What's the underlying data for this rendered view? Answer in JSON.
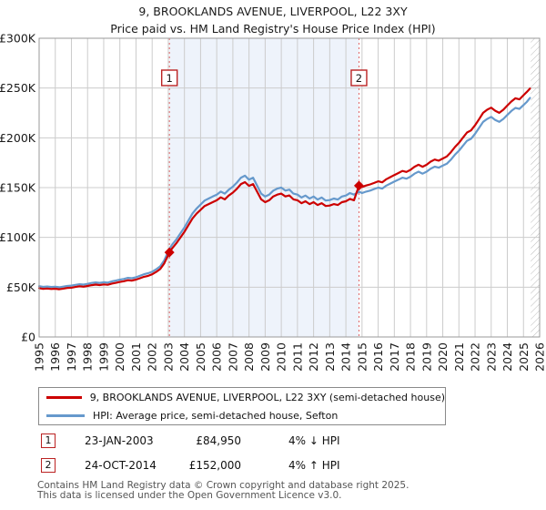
{
  "title": "9, BROOKLANDS AVENUE, LIVERPOOL, L22 3XY",
  "subtitle": "Price paid vs. HM Land Registry's House Price Index (HPI)",
  "legend": [
    {
      "label": "9, BROOKLANDS AVENUE, LIVERPOOL, L22 3XY (semi-detached house)",
      "color": "#cc0000"
    },
    {
      "label": "HPI: Average price, semi-detached house, Sefton",
      "color": "#6699cc"
    }
  ],
  "transactions": [
    {
      "num": "1",
      "date": "23-JAN-2003",
      "price": "£84,950",
      "delta": "4% ↓ HPI"
    },
    {
      "num": "2",
      "date": "24-OCT-2014",
      "price": "£152,000",
      "delta": "4% ↑ HPI"
    }
  ],
  "footer": {
    "line1": "Contains HM Land Registry data © Crown copyright and database right 2025.",
    "line2": "This data is licensed under the Open Government Licence v3.0."
  },
  "chart_data": {
    "type": "line",
    "title": "9, BROOKLANDS AVENUE, LIVERPOOL, L22 3XY",
    "subtitle": "Price paid vs. HM Land Registry's House Price Index (HPI)",
    "x_axis": {
      "min": 1995,
      "max": 2026,
      "tick_years": [
        1995,
        1996,
        1997,
        1998,
        1999,
        2000,
        2001,
        2002,
        2003,
        2004,
        2005,
        2006,
        2007,
        2008,
        2009,
        2010,
        2011,
        2012,
        2013,
        2014,
        2015,
        2016,
        2017,
        2018,
        2019,
        2020,
        2021,
        2022,
        2023,
        2024,
        2025,
        2026
      ]
    },
    "y_axis": {
      "min": 0,
      "max": 300000,
      "tick_values": [
        0,
        50000,
        100000,
        150000,
        200000,
        250000,
        300000
      ],
      "tick_labels": [
        "£0",
        "£50K",
        "£100K",
        "£150K",
        "£200K",
        "£250K",
        "£300K"
      ]
    },
    "grid": true,
    "legend_position": "bottom",
    "shaded_region": {
      "from": 2003.07,
      "to": 2014.81,
      "color": "#eef3fb"
    },
    "hatched_region": {
      "from": 2025.45,
      "to": 2026
    },
    "sale_markers": [
      {
        "label": "1",
        "x": 2003.07,
        "value": 84950,
        "date": "23-JAN-2003",
        "vs_hpi": "4% below HPI"
      },
      {
        "label": "2",
        "x": 2014.81,
        "value": 152000,
        "date": "24-OCT-2014",
        "vs_hpi": "4% above HPI"
      }
    ],
    "series": [
      {
        "name": "9, BROOKLANDS AVENUE, LIVERPOOL, L22 3XY (semi-detached house)",
        "color": "#cc0000",
        "points": [
          [
            1995.0,
            49000
          ],
          [
            1995.25,
            48300
          ],
          [
            1995.5,
            48700
          ],
          [
            1995.75,
            48200
          ],
          [
            1996.0,
            48500
          ],
          [
            1996.25,
            47900
          ],
          [
            1996.5,
            48600
          ],
          [
            1996.75,
            49200
          ],
          [
            1997.0,
            49500
          ],
          [
            1997.25,
            50200
          ],
          [
            1997.5,
            50900
          ],
          [
            1997.75,
            50500
          ],
          [
            1998.0,
            51200
          ],
          [
            1998.25,
            52000
          ],
          [
            1998.5,
            52600
          ],
          [
            1998.75,
            52100
          ],
          [
            1999.0,
            52800
          ],
          [
            1999.25,
            52400
          ],
          [
            1999.5,
            53600
          ],
          [
            1999.75,
            54300
          ],
          [
            2000.0,
            55200
          ],
          [
            2000.25,
            56000
          ],
          [
            2000.5,
            57000
          ],
          [
            2000.75,
            56600
          ],
          [
            2001.0,
            57600
          ],
          [
            2001.25,
            59000
          ],
          [
            2001.5,
            60500
          ],
          [
            2001.75,
            61400
          ],
          [
            2002.0,
            62900
          ],
          [
            2002.25,
            65300
          ],
          [
            2002.5,
            68200
          ],
          [
            2002.75,
            73900
          ],
          [
            2003.07,
            84950
          ],
          [
            2003.25,
            89300
          ],
          [
            2003.5,
            94100
          ],
          [
            2003.75,
            99800
          ],
          [
            2004.0,
            105600
          ],
          [
            2004.25,
            112300
          ],
          [
            2004.5,
            119000
          ],
          [
            2004.75,
            123800
          ],
          [
            2005.0,
            127700
          ],
          [
            2005.25,
            131500
          ],
          [
            2005.5,
            133400
          ],
          [
            2005.75,
            135400
          ],
          [
            2006.0,
            137300
          ],
          [
            2006.25,
            140200
          ],
          [
            2006.5,
            138200
          ],
          [
            2006.75,
            142100
          ],
          [
            2007.0,
            145000
          ],
          [
            2007.25,
            148800
          ],
          [
            2007.5,
            153600
          ],
          [
            2007.75,
            155500
          ],
          [
            2008.0,
            151700
          ],
          [
            2008.25,
            153600
          ],
          [
            2008.5,
            146000
          ],
          [
            2008.75,
            138200
          ],
          [
            2009.0,
            135400
          ],
          [
            2009.25,
            137300
          ],
          [
            2009.5,
            141100
          ],
          [
            2009.75,
            143000
          ],
          [
            2010.0,
            144000
          ],
          [
            2010.25,
            141100
          ],
          [
            2010.5,
            142100
          ],
          [
            2010.75,
            138200
          ],
          [
            2011.0,
            137300
          ],
          [
            2011.25,
            134400
          ],
          [
            2011.5,
            136300
          ],
          [
            2011.75,
            133400
          ],
          [
            2012.0,
            135400
          ],
          [
            2012.25,
            132500
          ],
          [
            2012.5,
            134400
          ],
          [
            2012.75,
            131500
          ],
          [
            2013.0,
            132000
          ],
          [
            2013.25,
            133400
          ],
          [
            2013.5,
            132500
          ],
          [
            2013.75,
            135400
          ],
          [
            2014.0,
            136300
          ],
          [
            2014.25,
            138700
          ],
          [
            2014.5,
            137300
          ],
          [
            2014.81,
            152000
          ],
          [
            2015.0,
            150600
          ],
          [
            2015.25,
            152100
          ],
          [
            2015.5,
            153200
          ],
          [
            2015.75,
            154700
          ],
          [
            2016.0,
            156300
          ],
          [
            2016.25,
            155300
          ],
          [
            2016.5,
            158400
          ],
          [
            2016.75,
            160500
          ],
          [
            2017.0,
            162600
          ],
          [
            2017.25,
            164600
          ],
          [
            2017.5,
            166700
          ],
          [
            2017.75,
            165700
          ],
          [
            2018.0,
            167800
          ],
          [
            2018.25,
            170900
          ],
          [
            2018.5,
            173000
          ],
          [
            2018.75,
            170900
          ],
          [
            2019.0,
            173000
          ],
          [
            2019.25,
            176100
          ],
          [
            2019.5,
            178200
          ],
          [
            2019.75,
            177100
          ],
          [
            2020.0,
            179200
          ],
          [
            2020.25,
            181300
          ],
          [
            2020.5,
            185500
          ],
          [
            2020.75,
            190700
          ],
          [
            2021.0,
            194900
          ],
          [
            2021.25,
            200100
          ],
          [
            2021.5,
            205300
          ],
          [
            2021.75,
            207400
          ],
          [
            2022.0,
            212600
          ],
          [
            2022.25,
            218800
          ],
          [
            2022.5,
            225100
          ],
          [
            2022.75,
            228200
          ],
          [
            2023.0,
            230300
          ],
          [
            2023.25,
            227200
          ],
          [
            2023.5,
            225100
          ],
          [
            2023.75,
            228200
          ],
          [
            2024.0,
            232400
          ],
          [
            2024.25,
            236500
          ],
          [
            2024.5,
            239700
          ],
          [
            2024.75,
            238600
          ],
          [
            2025.0,
            242800
          ],
          [
            2025.2,
            245900
          ],
          [
            2025.4,
            249500
          ]
        ]
      },
      {
        "name": "HPI: Average price, semi-detached house, Sefton",
        "color": "#6699cc",
        "points": [
          [
            1995.0,
            51000
          ],
          [
            1995.25,
            50300
          ],
          [
            1995.5,
            50700
          ],
          [
            1995.75,
            50200
          ],
          [
            1996.0,
            50500
          ],
          [
            1996.25,
            49900
          ],
          [
            1996.5,
            50600
          ],
          [
            1996.75,
            51200
          ],
          [
            1997.0,
            51600
          ],
          [
            1997.25,
            52300
          ],
          [
            1997.5,
            53000
          ],
          [
            1997.75,
            52600
          ],
          [
            1998.0,
            53300
          ],
          [
            1998.25,
            54200
          ],
          [
            1998.5,
            54800
          ],
          [
            1998.75,
            54300
          ],
          [
            1999.0,
            55000
          ],
          [
            1999.25,
            54600
          ],
          [
            1999.5,
            55800
          ],
          [
            1999.75,
            56600
          ],
          [
            2000.0,
            57500
          ],
          [
            2000.25,
            58300
          ],
          [
            2000.5,
            59400
          ],
          [
            2000.75,
            59000
          ],
          [
            2001.0,
            60000
          ],
          [
            2001.25,
            61500
          ],
          [
            2001.5,
            63000
          ],
          [
            2001.75,
            64000
          ],
          [
            2002.0,
            65500
          ],
          [
            2002.25,
            68000
          ],
          [
            2002.5,
            71000
          ],
          [
            2002.75,
            77000
          ],
          [
            2003.07,
            88500
          ],
          [
            2003.25,
            93000
          ],
          [
            2003.5,
            98000
          ],
          [
            2003.75,
            104000
          ],
          [
            2004.0,
            110000
          ],
          [
            2004.25,
            117000
          ],
          [
            2004.5,
            124000
          ],
          [
            2004.75,
            129000
          ],
          [
            2005.0,
            133000
          ],
          [
            2005.25,
            137000
          ],
          [
            2005.5,
            139000
          ],
          [
            2005.75,
            141000
          ],
          [
            2006.0,
            143000
          ],
          [
            2006.25,
            146000
          ],
          [
            2006.5,
            144000
          ],
          [
            2006.75,
            148000
          ],
          [
            2007.0,
            151000
          ],
          [
            2007.25,
            155000
          ],
          [
            2007.5,
            160000
          ],
          [
            2007.75,
            162000
          ],
          [
            2008.0,
            158000
          ],
          [
            2008.25,
            160000
          ],
          [
            2008.5,
            152000
          ],
          [
            2008.75,
            144000
          ],
          [
            2009.0,
            141000
          ],
          [
            2009.25,
            143000
          ],
          [
            2009.5,
            147000
          ],
          [
            2009.75,
            149000
          ],
          [
            2010.0,
            150000
          ],
          [
            2010.25,
            147000
          ],
          [
            2010.5,
            148000
          ],
          [
            2010.75,
            144000
          ],
          [
            2011.0,
            143000
          ],
          [
            2011.25,
            140000
          ],
          [
            2011.5,
            142000
          ],
          [
            2011.75,
            139000
          ],
          [
            2012.0,
            141000
          ],
          [
            2012.25,
            138000
          ],
          [
            2012.5,
            140000
          ],
          [
            2012.75,
            137000
          ],
          [
            2013.0,
            137500
          ],
          [
            2013.25,
            139000
          ],
          [
            2013.5,
            138000
          ],
          [
            2013.75,
            141000
          ],
          [
            2014.0,
            142000
          ],
          [
            2014.25,
            144500
          ],
          [
            2014.5,
            143000
          ],
          [
            2014.81,
            146000
          ],
          [
            2015.0,
            144500
          ],
          [
            2015.25,
            146000
          ],
          [
            2015.5,
            147000
          ],
          [
            2015.75,
            148500
          ],
          [
            2016.0,
            150000
          ],
          [
            2016.25,
            149000
          ],
          [
            2016.5,
            152000
          ],
          [
            2016.75,
            154000
          ],
          [
            2017.0,
            156000
          ],
          [
            2017.25,
            158000
          ],
          [
            2017.5,
            160000
          ],
          [
            2017.75,
            159000
          ],
          [
            2018.0,
            161000
          ],
          [
            2018.25,
            164000
          ],
          [
            2018.5,
            166000
          ],
          [
            2018.75,
            164000
          ],
          [
            2019.0,
            166000
          ],
          [
            2019.25,
            169000
          ],
          [
            2019.5,
            171000
          ],
          [
            2019.75,
            170000
          ],
          [
            2020.0,
            172000
          ],
          [
            2020.25,
            174000
          ],
          [
            2020.5,
            178000
          ],
          [
            2020.75,
            183000
          ],
          [
            2021.0,
            187000
          ],
          [
            2021.25,
            192000
          ],
          [
            2021.5,
            197000
          ],
          [
            2021.75,
            199000
          ],
          [
            2022.0,
            204000
          ],
          [
            2022.25,
            210000
          ],
          [
            2022.5,
            216000
          ],
          [
            2022.75,
            219000
          ],
          [
            2023.0,
            221000
          ],
          [
            2023.25,
            218000
          ],
          [
            2023.5,
            216000
          ],
          [
            2023.75,
            219000
          ],
          [
            2024.0,
            223000
          ],
          [
            2024.25,
            227000
          ],
          [
            2024.5,
            230000
          ],
          [
            2024.75,
            229000
          ],
          [
            2025.0,
            233000
          ],
          [
            2025.2,
            236000
          ],
          [
            2025.4,
            240000
          ]
        ]
      }
    ],
    "colors": {
      "grid": "#cccccc",
      "plot_border": "#999999",
      "sale_dash_line": "#e06666",
      "marker_box_border": "#bb2222",
      "hatch": "#bbbbbb"
    }
  }
}
